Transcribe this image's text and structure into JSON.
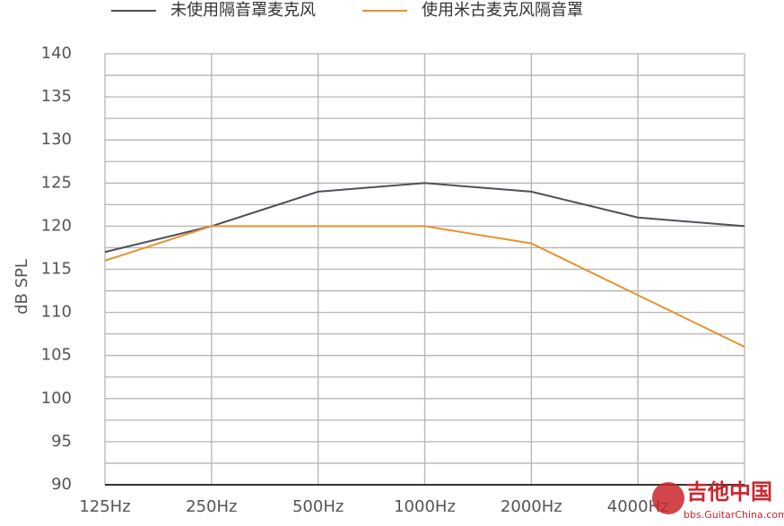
{
  "chart_data": {
    "type": "line",
    "categories": [
      "125Hz",
      "250Hz",
      "500Hz",
      "1000Hz",
      "2000Hz",
      "4000Hz",
      null
    ],
    "series": [
      {
        "name": "未使用隔音罩麦克风",
        "color": "#4d5057",
        "values": [
          117,
          120,
          124,
          125,
          124,
          121,
          120
        ]
      },
      {
        "name": "使用米古麦克风隔音罩",
        "color": "#e8922e",
        "values": [
          116,
          120,
          120,
          120,
          118,
          112,
          106
        ]
      }
    ],
    "y_label": "dB SPL",
    "ylim": [
      90,
      140
    ],
    "yticks": [
      90,
      95,
      100,
      105,
      110,
      115,
      120,
      125,
      130,
      135,
      140
    ],
    "yminor": [
      92.5,
      97.5,
      102.5,
      107.5,
      112.5,
      117.5,
      122.5,
      127.5,
      132.5,
      137.5
    ],
    "grid": true,
    "legend": "top",
    "watermark": {
      "title": "吉他中国",
      "url": "bbs.GuitarChina.com"
    }
  }
}
